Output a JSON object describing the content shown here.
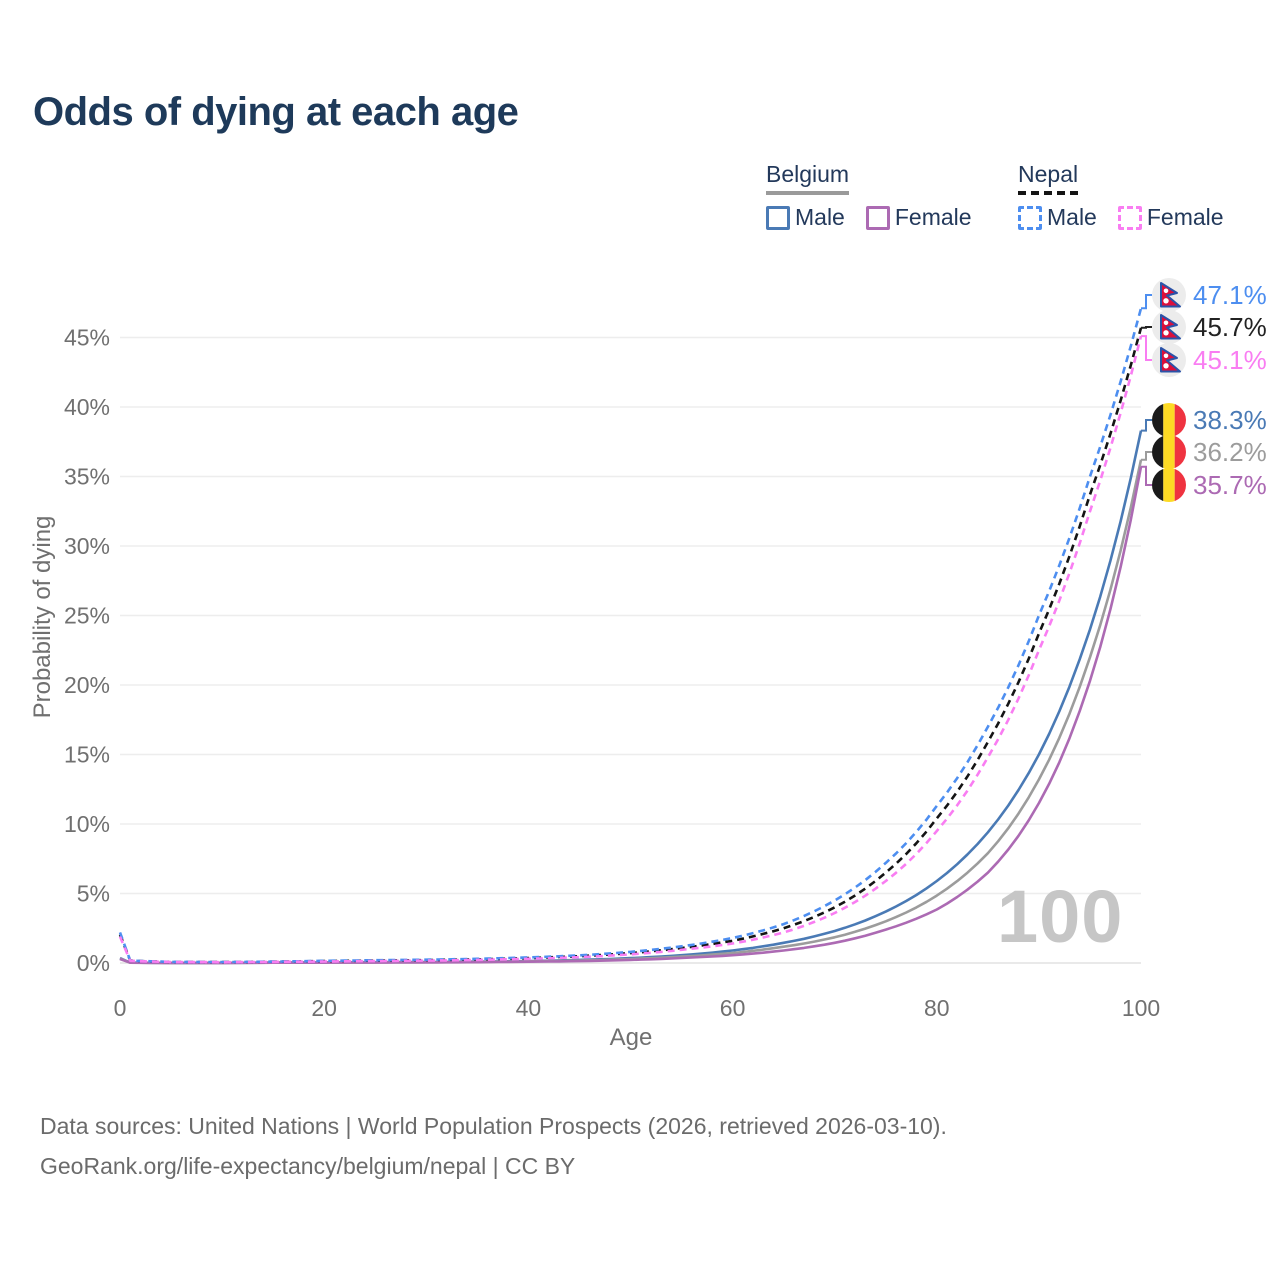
{
  "title": "Odds of dying at each age",
  "watermark": "100",
  "legend": {
    "groups": [
      {
        "name": "Belgium",
        "style": "solid",
        "items": [
          {
            "label": "Male",
            "color": "#4a7ab5"
          },
          {
            "label": "Female",
            "color": "#ac6ab3"
          }
        ]
      },
      {
        "name": "Nepal",
        "style": "dashed",
        "items": [
          {
            "label": "Male",
            "color": "#4d8ef0"
          },
          {
            "label": "Female",
            "color": "#f97df2"
          }
        ]
      }
    ]
  },
  "chart_data": {
    "type": "line",
    "title": "Odds of dying at each age",
    "xlabel": "Age",
    "ylabel": "Probability of dying",
    "xlim": [
      0,
      100
    ],
    "ylim": [
      0,
      48
    ],
    "x_ticks": [
      0,
      20,
      40,
      60,
      80,
      100
    ],
    "y_ticks": [
      0,
      5,
      10,
      15,
      20,
      25,
      30,
      35,
      40,
      45
    ],
    "y_tick_suffix": "%",
    "grid": true,
    "ages": [
      0,
      1,
      5,
      10,
      15,
      20,
      25,
      30,
      35,
      40,
      45,
      50,
      55,
      60,
      65,
      70,
      75,
      80,
      85,
      90,
      95,
      100
    ],
    "series": [
      {
        "name": "Belgium Male",
        "country": "Belgium",
        "sex": "Male",
        "flag": "belgium",
        "color": "#4a7ab5",
        "label_color": "#4a7ab5",
        "line_style": "solid",
        "end_label": "38.3%",
        "end_value": 38.3,
        "values": [
          0.35,
          0.03,
          0.01,
          0.01,
          0.03,
          0.05,
          0.06,
          0.07,
          0.1,
          0.14,
          0.22,
          0.35,
          0.56,
          0.9,
          1.45,
          2.3,
          3.7,
          5.9,
          9.4,
          15.0,
          24.0,
          38.3
        ]
      },
      {
        "name": "Belgium Both sexes",
        "country": "Belgium",
        "sex": "Both",
        "flag": "belgium",
        "color": "#9c9c9c",
        "label_color": "#9c9c9c",
        "line_style": "solid",
        "end_label": "36.2%",
        "end_value": 36.2,
        "values": [
          0.32,
          0.025,
          0.01,
          0.01,
          0.025,
          0.04,
          0.045,
          0.055,
          0.08,
          0.12,
          0.18,
          0.29,
          0.46,
          0.72,
          1.17,
          1.85,
          3.0,
          4.85,
          7.9,
          13.2,
          22.0,
          36.2
        ]
      },
      {
        "name": "Belgium Female",
        "country": "Belgium",
        "sex": "Female",
        "flag": "belgium",
        "color": "#ac6ab3",
        "label_color": "#ac6ab3",
        "line_style": "solid",
        "end_label": "35.7%",
        "end_value": 35.7,
        "values": [
          0.29,
          0.02,
          0.008,
          0.008,
          0.02,
          0.025,
          0.03,
          0.04,
          0.06,
          0.09,
          0.14,
          0.22,
          0.36,
          0.56,
          0.9,
          1.45,
          2.4,
          3.85,
          6.5,
          11.5,
          20.3,
          35.7
        ]
      },
      {
        "name": "Nepal Both sexes",
        "country": "Nepal",
        "sex": "Both",
        "flag": "nepal",
        "color": "#141414",
        "label_color": "#222222",
        "line_style": "dashed",
        "end_label": "45.7%",
        "end_value": 45.7,
        "values": [
          2.05,
          0.17,
          0.075,
          0.065,
          0.09,
          0.14,
          0.17,
          0.21,
          0.26,
          0.35,
          0.49,
          0.71,
          1.08,
          1.6,
          2.5,
          4.0,
          6.5,
          10.4,
          15.9,
          23.7,
          33.7,
          45.7
        ]
      },
      {
        "name": "Nepal Male",
        "country": "Nepal",
        "sex": "Male",
        "flag": "nepal",
        "color": "#4d8ef0",
        "label_color": "#4d8ef0",
        "line_style": "dashed",
        "end_label": "47.1%",
        "end_value": 47.1,
        "values": [
          2.2,
          0.18,
          0.08,
          0.07,
          0.1,
          0.16,
          0.2,
          0.24,
          0.3,
          0.4,
          0.55,
          0.8,
          1.2,
          1.8,
          2.8,
          4.5,
          7.2,
          11.3,
          17.0,
          25.0,
          35.0,
          47.1
        ]
      },
      {
        "name": "Nepal Female",
        "country": "Nepal",
        "sex": "Female",
        "flag": "nepal",
        "color": "#f97df2",
        "label_color": "#f97df2",
        "line_style": "dashed",
        "end_label": "45.1%",
        "end_value": 45.1,
        "values": [
          1.9,
          0.16,
          0.07,
          0.06,
          0.08,
          0.11,
          0.14,
          0.17,
          0.22,
          0.3,
          0.42,
          0.62,
          0.95,
          1.4,
          2.2,
          3.6,
          5.9,
          9.5,
          14.8,
          22.5,
          32.5,
          45.1
        ]
      }
    ]
  },
  "footer": {
    "line1": "Data sources: United Nations | World Population Prospects (2026, retrieved 2026-03-10).",
    "line2": "GeoRank.org/life-expectancy/belgium/nepal | CC BY"
  }
}
